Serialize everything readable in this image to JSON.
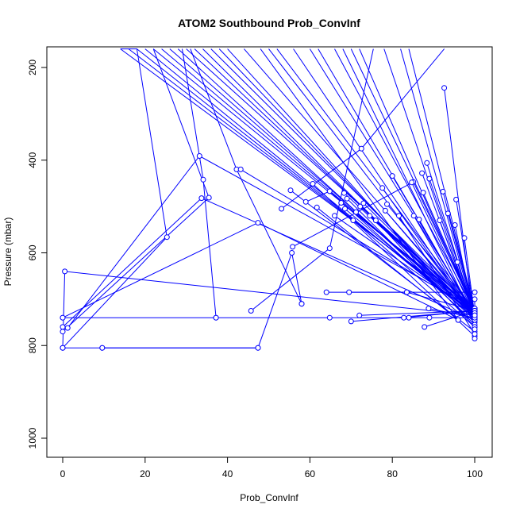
{
  "chart_data": {
    "type": "line",
    "title": "ATOM2 Southbound Prob_ConvInf",
    "xlabel": "Prob_ConvInf",
    "ylabel": "Pressure (mbar)",
    "xlim": [
      0,
      100
    ],
    "ylim": [
      1040,
      160
    ],
    "y_reversed": true,
    "x_ticks": [
      0,
      20,
      40,
      60,
      80,
      100
    ],
    "y_ticks": [
      200,
      400,
      600,
      800,
      1000
    ],
    "grid": false,
    "legend": "none",
    "series_color": "#0000ff",
    "marker": "open-circle",
    "profiles": [
      {
        "x": [
          0,
          0.5,
          100
        ],
        "y": [
          805,
          640,
          735
        ]
      },
      {
        "x": [
          0,
          25.3,
          18,
          14
        ],
        "y": [
          805,
          566,
          160,
          160
        ]
      },
      {
        "x": [
          0,
          9.6,
          47.4
        ],
        "y": [
          805,
          805,
          805
        ]
      },
      {
        "x": [
          0,
          33.7,
          100
        ],
        "y": [
          760,
          482,
          745
        ]
      },
      {
        "x": [
          0,
          35.5,
          22
        ],
        "y": [
          770,
          481,
          160
        ]
      },
      {
        "x": [
          1.2,
          33.2,
          100
        ],
        "y": [
          762,
          391,
          720
        ]
      },
      {
        "x": [
          0,
          47.4,
          96
        ],
        "y": [
          740,
          535,
          745
        ]
      },
      {
        "x": [
          0,
          37.2,
          64.8,
          84,
          89,
          100
        ],
        "y": [
          740,
          740,
          740,
          740,
          740,
          740
        ]
      },
      {
        "x": [
          9.6,
          47.4,
          55.6,
          58
        ],
        "y": [
          805,
          805,
          600,
          710
        ]
      },
      {
        "x": [
          37.2,
          34.1,
          29
        ],
        "y": [
          740,
          442,
          160
        ]
      },
      {
        "x": [
          58,
          42.2,
          31
        ],
        "y": [
          710,
          420,
          160
        ]
      },
      {
        "x": [
          43.2,
          100
        ],
        "y": [
          420,
          725
        ]
      },
      {
        "x": [
          45.7,
          64.8,
          75.4
        ],
        "y": [
          725,
          590,
          160
        ]
      },
      {
        "x": [
          53.1,
          72.5,
          92.6
        ],
        "y": [
          505,
          375,
          160
        ]
      },
      {
        "x": [
          55.3,
          100
        ],
        "y": [
          465,
          770
        ]
      },
      {
        "x": [
          55.8,
          85.1,
          100
        ],
        "y": [
          587,
          447,
          725
        ]
      },
      {
        "x": [
          59,
          64.8,
          100
        ],
        "y": [
          490,
          467,
          750
        ]
      },
      {
        "x": [
          60.7,
          100
        ],
        "y": [
          451,
          780
        ]
      },
      {
        "x": [
          61.7,
          96,
          48
        ],
        "y": [
          502,
          745,
          160
        ]
      },
      {
        "x": [
          64,
          100
        ],
        "y": [
          685,
          685
        ]
      },
      {
        "x": [
          66,
          100
        ],
        "y": [
          520,
          730
        ]
      },
      {
        "x": [
          67.6,
          100
        ],
        "y": [
          492,
          720
        ]
      },
      {
        "x": [
          68.3,
          100
        ],
        "y": [
          471,
          730
        ]
      },
      {
        "x": [
          68.5,
          100
        ],
        "y": [
          505,
          740
        ]
      },
      {
        "x": [
          69,
          100
        ],
        "y": [
          483,
          755
        ]
      },
      {
        "x": [
          69.5,
          83.5
        ],
        "y": [
          685,
          685
        ]
      },
      {
        "x": [
          70,
          100
        ],
        "y": [
          748,
          725
        ]
      },
      {
        "x": [
          70.5,
          100
        ],
        "y": [
          530,
          760
        ]
      },
      {
        "x": [
          71.2,
          100
        ],
        "y": [
          512,
          735
        ]
      },
      {
        "x": [
          72,
          100
        ],
        "y": [
          735,
          725
        ]
      },
      {
        "x": [
          72.2,
          100
        ],
        "y": [
          500,
          720
        ]
      },
      {
        "x": [
          73,
          100
        ],
        "y": [
          493,
          730
        ]
      },
      {
        "x": [
          74.5,
          100
        ],
        "y": [
          520,
          730
        ]
      },
      {
        "x": [
          76,
          100
        ],
        "y": [
          530,
          760
        ]
      },
      {
        "x": [
          77.6,
          100
        ],
        "y": [
          460,
          740
        ]
      },
      {
        "x": [
          78.3,
          100
        ],
        "y": [
          509,
          735
        ]
      },
      {
        "x": [
          78.7,
          100
        ],
        "y": [
          495,
          725
        ]
      },
      {
        "x": [
          80,
          100
        ],
        "y": [
          434,
          735
        ]
      },
      {
        "x": [
          81.6,
          100
        ],
        "y": [
          520,
          775
        ]
      },
      {
        "x": [
          82.8,
          100
        ],
        "y": [
          740,
          725
        ]
      },
      {
        "x": [
          83.5,
          100
        ],
        "y": [
          685,
          725
        ]
      },
      {
        "x": [
          84.7,
          100
        ],
        "y": [
          448,
          735
        ]
      },
      {
        "x": [
          85.2,
          100
        ],
        "y": [
          520,
          745
        ]
      },
      {
        "x": [
          86.5,
          100
        ],
        "y": [
          528,
          740
        ]
      },
      {
        "x": [
          87.2,
          100
        ],
        "y": [
          428,
          735
        ]
      },
      {
        "x": [
          87.5,
          100
        ],
        "y": [
          470,
          725
        ]
      },
      {
        "x": [
          87.8,
          100
        ],
        "y": [
          760,
          725
        ]
      },
      {
        "x": [
          88.4,
          100
        ],
        "y": [
          406,
          735
        ]
      },
      {
        "x": [
          88.8,
          100
        ],
        "y": [
          720,
          740
        ]
      },
      {
        "x": [
          89,
          100
        ],
        "y": [
          440,
          730
        ]
      },
      {
        "x": [
          91.5,
          100
        ],
        "y": [
          530,
          740
        ]
      },
      {
        "x": [
          92.3,
          100
        ],
        "y": [
          468,
          725
        ]
      },
      {
        "x": [
          92.6,
          100
        ],
        "y": [
          244,
          765
        ]
      },
      {
        "x": [
          93.5,
          100
        ],
        "y": [
          515,
          730
        ]
      },
      {
        "x": [
          95.2,
          100
        ],
        "y": [
          540,
          745
        ]
      },
      {
        "x": [
          95.5,
          100
        ],
        "y": [
          485,
          735
        ]
      },
      {
        "x": [
          95.8,
          100
        ],
        "y": [
          620,
          740
        ]
      },
      {
        "x": [
          97.5,
          100
        ],
        "y": [
          568,
          735
        ]
      },
      {
        "x": [
          100,
          100
        ],
        "y": [
          700,
          785
        ]
      }
    ],
    "leading_segments": [
      {
        "x": [
          14,
          100
        ],
        "y": [
          160,
          725
        ]
      },
      {
        "x": [
          16,
          100
        ],
        "y": [
          160,
          730
        ]
      },
      {
        "x": [
          18,
          100
        ],
        "y": [
          160,
          735
        ]
      },
      {
        "x": [
          20,
          100
        ],
        "y": [
          160,
          740
        ]
      },
      {
        "x": [
          22,
          100
        ],
        "y": [
          160,
          725
        ]
      },
      {
        "x": [
          24,
          100
        ],
        "y": [
          160,
          730
        ]
      },
      {
        "x": [
          26,
          100
        ],
        "y": [
          160,
          735
        ]
      },
      {
        "x": [
          28,
          100
        ],
        "y": [
          160,
          745
        ]
      },
      {
        "x": [
          30,
          100
        ],
        "y": [
          160,
          720
        ]
      },
      {
        "x": [
          32,
          100
        ],
        "y": [
          160,
          730
        ]
      },
      {
        "x": [
          34,
          100
        ],
        "y": [
          160,
          740
        ]
      },
      {
        "x": [
          36,
          100
        ],
        "y": [
          160,
          725
        ]
      },
      {
        "x": [
          38,
          100
        ],
        "y": [
          160,
          735
        ]
      },
      {
        "x": [
          40,
          100
        ],
        "y": [
          160,
          745
        ]
      },
      {
        "x": [
          44,
          100
        ],
        "y": [
          160,
          730
        ]
      },
      {
        "x": [
          50,
          100
        ],
        "y": [
          160,
          735
        ]
      },
      {
        "x": [
          52,
          100
        ],
        "y": [
          160,
          725
        ]
      },
      {
        "x": [
          56,
          100
        ],
        "y": [
          160,
          740
        ]
      },
      {
        "x": [
          60,
          100
        ],
        "y": [
          160,
          730
        ]
      },
      {
        "x": [
          62,
          100
        ],
        "y": [
          160,
          735
        ]
      },
      {
        "x": [
          66,
          100
        ],
        "y": [
          160,
          725
        ]
      },
      {
        "x": [
          68,
          100
        ],
        "y": [
          160,
          745
        ]
      },
      {
        "x": [
          70,
          100
        ],
        "y": [
          160,
          720
        ]
      },
      {
        "x": [
          72,
          100
        ],
        "y": [
          160,
          730
        ]
      },
      {
        "x": [
          78,
          100
        ],
        "y": [
          160,
          740
        ]
      },
      {
        "x": [
          82,
          100
        ],
        "y": [
          160,
          735
        ]
      },
      {
        "x": [
          84,
          100
        ],
        "y": [
          160,
          725
        ]
      }
    ]
  }
}
